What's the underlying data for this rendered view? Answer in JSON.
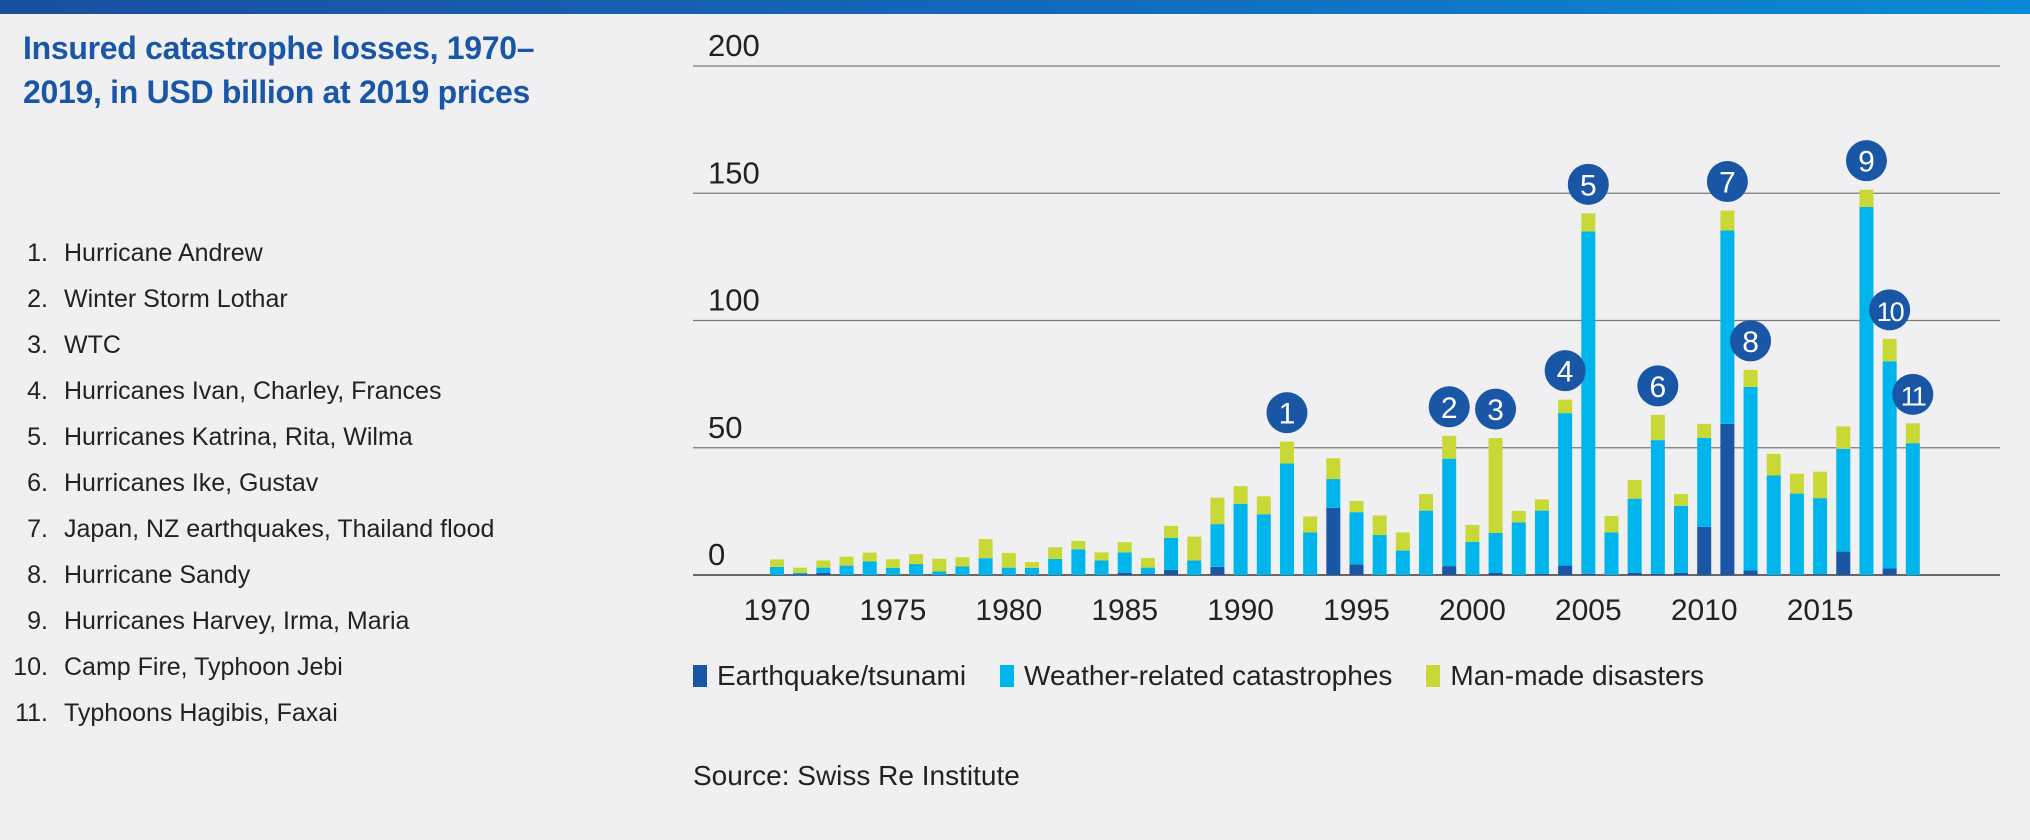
{
  "title": "Insured catastrophe losses, 1970–2019, in USD billion at 2019 prices",
  "events": [
    {
      "num": "1.",
      "label": "Hurricane Andrew"
    },
    {
      "num": "2.",
      "label": "Winter Storm Lothar"
    },
    {
      "num": "3.",
      "label": "WTC"
    },
    {
      "num": "4.",
      "label": "Hurricanes Ivan, Charley, Frances"
    },
    {
      "num": "5.",
      "label": "Hurricanes Katrina, Rita, Wilma"
    },
    {
      "num": "6.",
      "label": "Hurricanes Ike, Gustav"
    },
    {
      "num": "7.",
      "label": "Japan, NZ earthquakes, Thailand flood"
    },
    {
      "num": "8.",
      "label": "Hurricane Sandy"
    },
    {
      "num": "9.",
      "label": "Hurricanes Harvey, Irma, Maria"
    },
    {
      "num": "10.",
      "label": "Camp Fire, Typhoon Jebi"
    },
    {
      "num": "11.",
      "label": "Typhoons Hagibis, Faxai"
    }
  ],
  "source": "Source: Swiss Re Institute",
  "colors": {
    "earthquake": "#1a56a6",
    "weather": "#00b5ec",
    "manmade": "#c8d936",
    "title": "#1a56a6",
    "grid": "#7a7a7a"
  },
  "chart_data": {
    "type": "bar",
    "stacked": true,
    "title": "Insured catastrophe losses, 1970–2019, in USD billion at 2019 prices",
    "xlabel": "",
    "ylabel": "USD billion",
    "ylim": [
      0,
      200
    ],
    "yticks": [
      "0",
      "50",
      "100",
      "150",
      "200"
    ],
    "xticks": [
      "1970",
      "1975",
      "1980",
      "1985",
      "1990",
      "1995",
      "2000",
      "2005",
      "2010",
      "2015"
    ],
    "grid": true,
    "legend_position": "bottom",
    "categories": [
      1970,
      1971,
      1972,
      1973,
      1974,
      1975,
      1976,
      1977,
      1978,
      1979,
      1980,
      1981,
      1982,
      1983,
      1984,
      1985,
      1986,
      1987,
      1988,
      1989,
      1990,
      1991,
      1992,
      1993,
      1994,
      1995,
      1996,
      1997,
      1998,
      1999,
      2000,
      2001,
      2002,
      2003,
      2004,
      2005,
      2006,
      2007,
      2008,
      2009,
      2010,
      2011,
      2012,
      2013,
      2014,
      2015,
      2016,
      2017,
      2018,
      2019
    ],
    "series": [
      {
        "name": "Earthquake/tsunami",
        "color": "#1a56a6",
        "values": [
          0,
          0.3,
          0.8,
          0,
          0,
          0,
          0,
          0,
          0,
          0,
          0,
          0,
          0,
          0,
          0,
          0.8,
          0.3,
          2,
          0,
          3.2,
          0,
          0,
          0,
          0,
          26.4,
          4.2,
          0,
          0,
          0,
          3.5,
          0,
          0.8,
          0,
          0.5,
          3.7,
          0.5,
          0,
          0.8,
          0.5,
          0.8,
          18.9,
          59.4,
          1.8,
          0,
          0,
          0.3,
          9.2,
          0,
          2.6,
          0
        ]
      },
      {
        "name": "Weather-related catastrophes",
        "color": "#00b5ec",
        "values": [
          3.2,
          0.6,
          2.1,
          3.7,
          5.3,
          2.8,
          4.3,
          1.4,
          3.4,
          6.6,
          2.9,
          2.8,
          6.3,
          10.1,
          5.7,
          8.1,
          2.6,
          12.6,
          5.7,
          16.8,
          27.9,
          23.9,
          43.8,
          16.7,
          11.3,
          20.5,
          15.7,
          9.6,
          25.3,
          42.2,
          13,
          15.7,
          20.7,
          24.8,
          59.9,
          134.5,
          16.8,
          29.2,
          52.5,
          26.4,
          35,
          76,
          72.1,
          39.1,
          32,
          29.9,
          40.4,
          144.6,
          81.4,
          51.8
        ]
      },
      {
        "name": "Man-made disasters",
        "color": "#c8d936",
        "values": [
          2.9,
          2,
          2.8,
          3.5,
          3.5,
          3.4,
          3.9,
          5,
          3.6,
          7.5,
          5.8,
          2.3,
          4.6,
          3.3,
          3.2,
          4,
          3.8,
          4.7,
          9.4,
          10.4,
          7,
          7,
          8.6,
          6.3,
          8.2,
          4.4,
          7.7,
          7.1,
          6.5,
          9,
          6.7,
          37.3,
          4.5,
          4.4,
          5.3,
          7.1,
          6.4,
          7.3,
          9.9,
          4.6,
          5.5,
          7.8,
          6.7,
          8.5,
          7.8,
          10.4,
          8.8,
          6.8,
          8.8,
          7.8
        ]
      }
    ],
    "annotations": [
      {
        "label": "1",
        "year": 1992
      },
      {
        "label": "2",
        "year": 1999
      },
      {
        "label": "3",
        "year": 2001
      },
      {
        "label": "4",
        "year": 2004
      },
      {
        "label": "5",
        "year": 2005
      },
      {
        "label": "6",
        "year": 2008
      },
      {
        "label": "7",
        "year": 2011
      },
      {
        "label": "8",
        "year": 2012
      },
      {
        "label": "9",
        "year": 2017
      },
      {
        "label": "10",
        "year": 2018
      },
      {
        "label": "11",
        "year": 2019
      }
    ]
  }
}
